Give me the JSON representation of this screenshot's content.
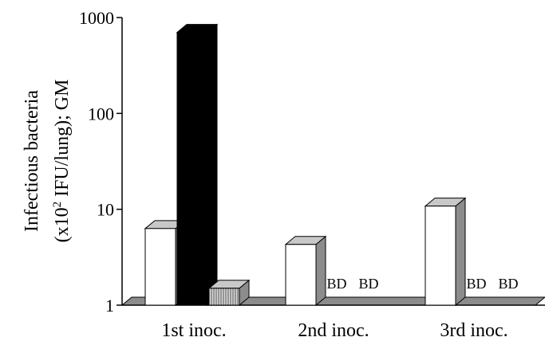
{
  "chart_data": {
    "type": "bar",
    "scale": "log",
    "ylim": [
      1,
      1000
    ],
    "yticks": [
      "1",
      "10",
      "100",
      "1000"
    ],
    "ylabel_line1": "Infectious bacteria",
    "ylabel_line2_prefix": "(x10",
    "ylabel_line2_sup": "2",
    "ylabel_line2_suffix": " IFU/lung); GM",
    "categories": [
      "1st inoc.",
      "2nd inoc.",
      "3rd inoc."
    ],
    "series": [
      {
        "style": "white",
        "values": [
          6.3,
          4.3,
          10.8
        ]
      },
      {
        "style": "black",
        "values": [
          700,
          null,
          null
        ]
      },
      {
        "style": "hatched",
        "values": [
          1.5,
          null,
          null
        ]
      }
    ],
    "annotations": [
      {
        "category": "2nd inoc.",
        "series_index": 1,
        "text": "BD"
      },
      {
        "category": "2nd inoc.",
        "series_index": 2,
        "text": "BD"
      },
      {
        "category": "3rd inoc.",
        "series_index": 1,
        "text": "BD"
      },
      {
        "category": "3rd inoc.",
        "series_index": 2,
        "text": "BD"
      }
    ],
    "grid": false,
    "legend": "none",
    "colors": {
      "white_bar": "#ffffff",
      "white_top": "#c8c8c8",
      "white_side": "#8c8c8c",
      "black_bar": "#000000",
      "hatched_bar": "#d8d8d8",
      "floor": "#8c8c8c",
      "axis": "#000000"
    }
  }
}
